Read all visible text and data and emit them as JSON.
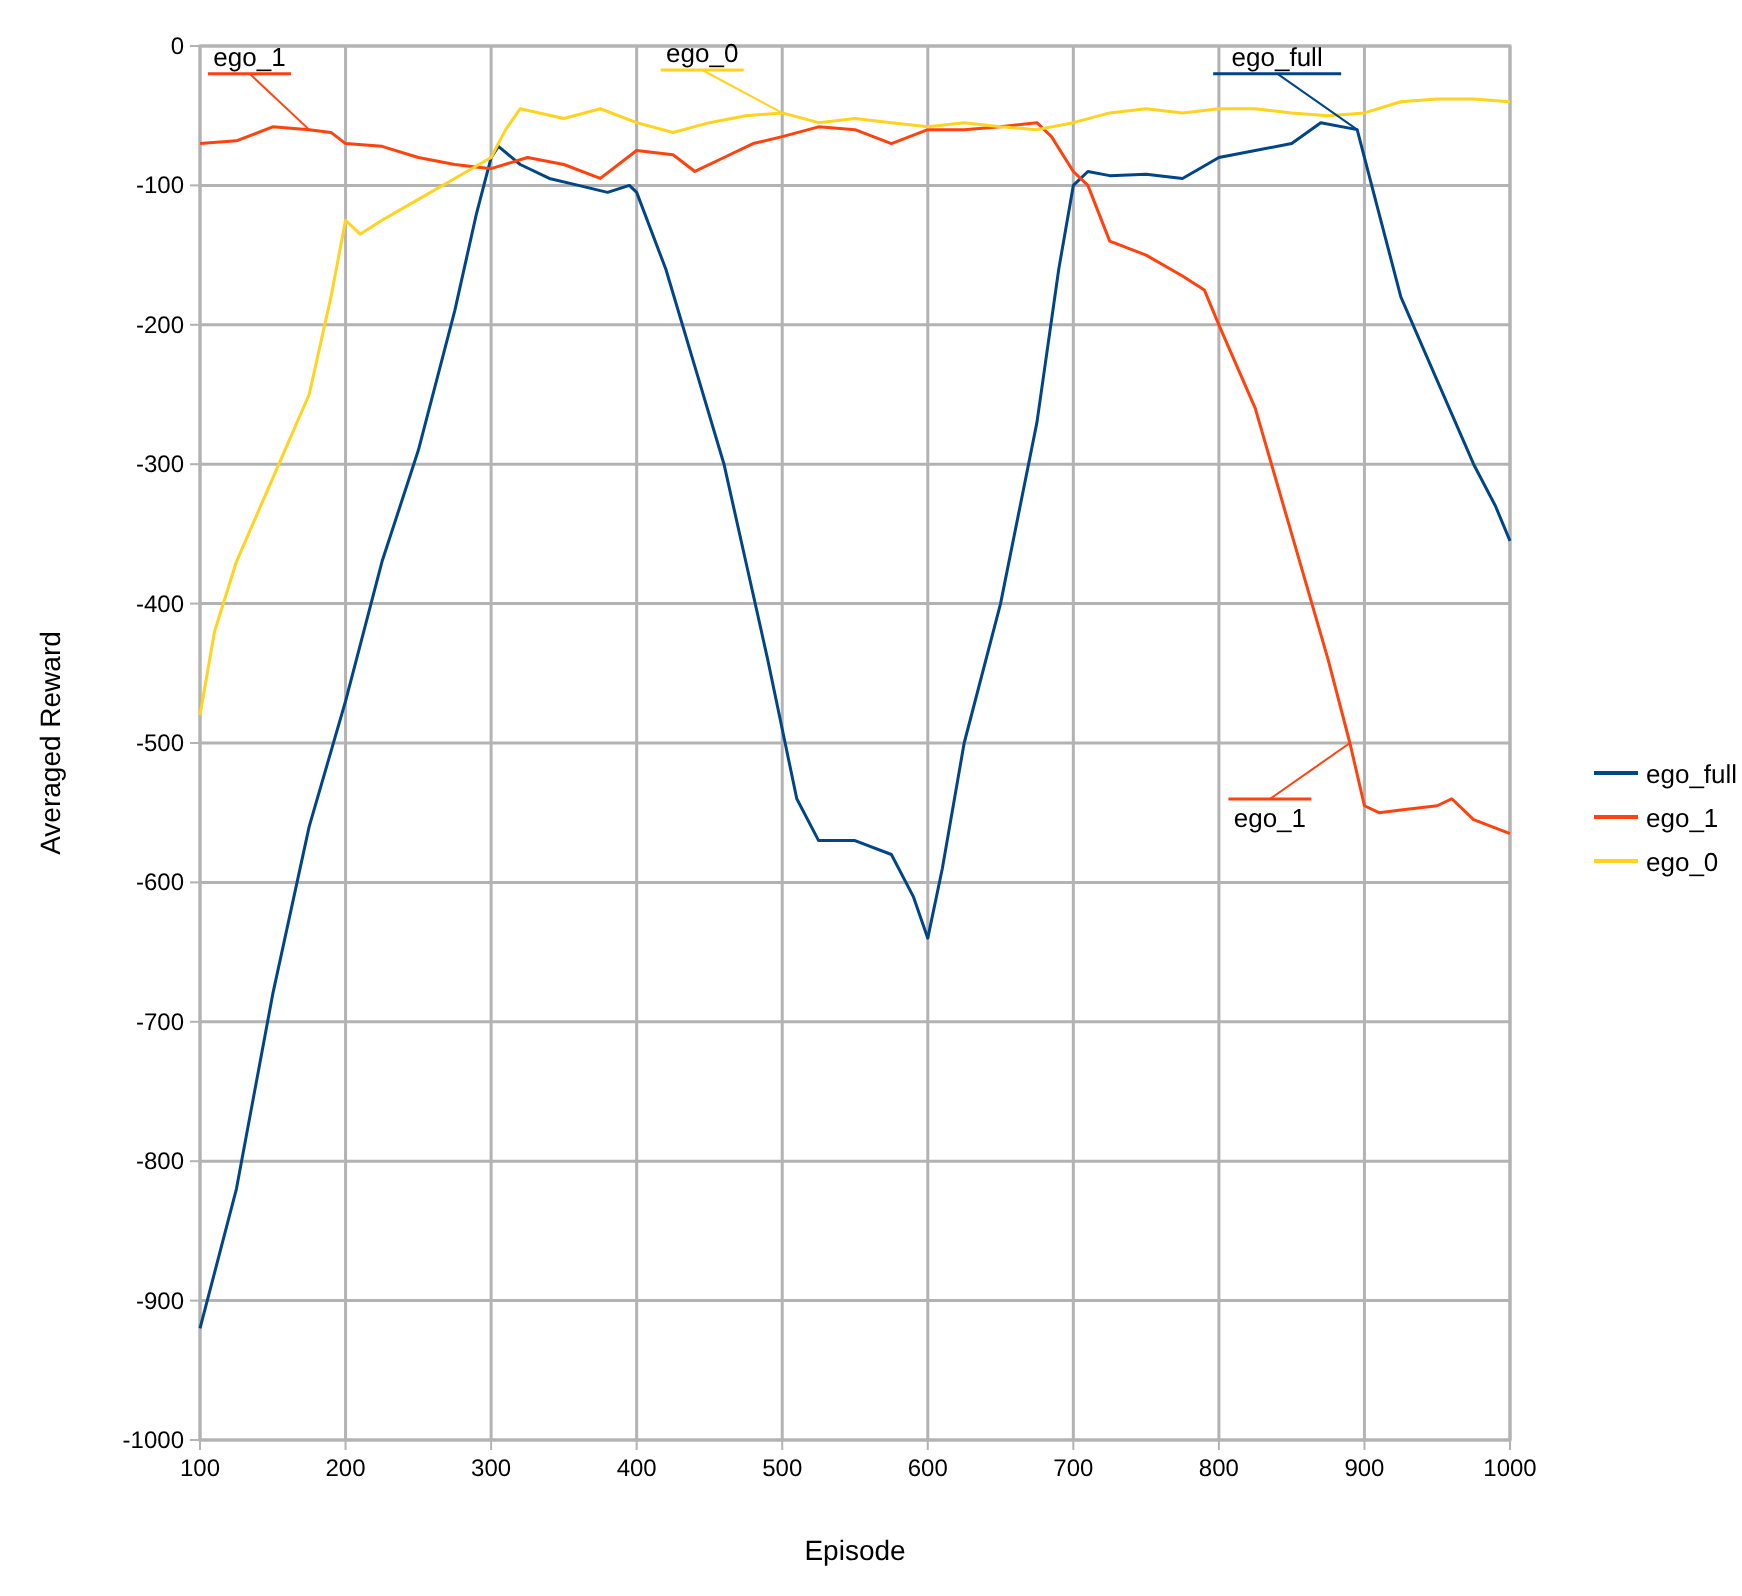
{
  "chart_data": {
    "type": "line",
    "xlabel": "Episode",
    "ylabel": "Averaged Reward",
    "xlim": [
      100,
      1000
    ],
    "xticks": [
      100,
      200,
      300,
      400,
      500,
      600,
      700,
      800,
      900,
      1000
    ],
    "ylim": [
      -1000,
      0
    ],
    "yticks": [
      -1000,
      -900,
      -800,
      -700,
      -600,
      -500,
      -400,
      -300,
      -200,
      -100,
      0
    ],
    "grid": true,
    "legend": "right",
    "line_style": "solid",
    "marker": "none",
    "series": [
      {
        "name": "ego_full",
        "color": "#004586",
        "x": [
          100,
          125,
          150,
          175,
          200,
          225,
          250,
          275,
          290,
          300,
          305,
          320,
          340,
          360,
          380,
          395,
          400,
          420,
          440,
          460,
          475,
          490,
          500,
          510,
          525,
          550,
          575,
          590,
          600,
          610,
          625,
          650,
          675,
          690,
          700,
          710,
          725,
          750,
          775,
          800,
          825,
          850,
          870,
          895,
          910,
          925,
          950,
          975,
          990,
          1000
        ],
        "values": [
          -920,
          -820,
          -680,
          -560,
          -470,
          -370,
          -290,
          -190,
          -120,
          -80,
          -72,
          -85,
          -95,
          -100,
          -105,
          -100,
          -105,
          -160,
          -230,
          -300,
          -370,
          -440,
          -490,
          -540,
          -570,
          -570,
          -580,
          -610,
          -640,
          -590,
          -500,
          -400,
          -270,
          -160,
          -100,
          -90,
          -93,
          -92,
          -95,
          -80,
          -75,
          -70,
          -55,
          -60,
          -120,
          -180,
          -240,
          -300,
          -330,
          -355
        ]
      },
      {
        "name": "ego_1",
        "color": "#ff420e",
        "x": [
          100,
          125,
          150,
          175,
          190,
          200,
          225,
          250,
          275,
          300,
          325,
          350,
          375,
          400,
          425,
          440,
          460,
          480,
          500,
          525,
          550,
          575,
          600,
          625,
          650,
          675,
          685,
          700,
          710,
          725,
          750,
          775,
          790,
          800,
          825,
          850,
          875,
          890,
          900,
          910,
          925,
          950,
          960,
          975,
          1000
        ],
        "values": [
          -70,
          -68,
          -58,
          -60,
          -62,
          -70,
          -72,
          -80,
          -85,
          -88,
          -80,
          -85,
          -95,
          -75,
          -78,
          -90,
          -80,
          -70,
          -65,
          -58,
          -60,
          -70,
          -60,
          -60,
          -58,
          -55,
          -65,
          -90,
          -100,
          -140,
          -150,
          -165,
          -175,
          -200,
          -260,
          -350,
          -440,
          -500,
          -545,
          -550,
          -548,
          -545,
          -540,
          -555,
          -565
        ]
      },
      {
        "name": "ego_0",
        "color": "#ffd320",
        "x": [
          100,
          110,
          125,
          150,
          175,
          190,
          200,
          210,
          225,
          250,
          275,
          300,
          310,
          320,
          350,
          375,
          400,
          425,
          450,
          475,
          500,
          525,
          550,
          575,
          600,
          625,
          650,
          675,
          700,
          725,
          750,
          775,
          800,
          825,
          850,
          875,
          900,
          925,
          950,
          975,
          1000
        ],
        "values": [
          -480,
          -420,
          -370,
          -310,
          -250,
          -180,
          -125,
          -135,
          -125,
          -110,
          -95,
          -80,
          -60,
          -45,
          -52,
          -45,
          -55,
          -62,
          -55,
          -50,
          -48,
          -55,
          -52,
          -55,
          -58,
          -55,
          -58,
          -60,
          -55,
          -48,
          -45,
          -48,
          -45,
          -45,
          -48,
          -50,
          -48,
          -40,
          -38,
          -38,
          -40
        ]
      }
    ],
    "annotations": [
      {
        "text": "ego_1",
        "x": 175,
        "y": -60
      },
      {
        "text": "ego_0",
        "x": 500,
        "y": -48
      },
      {
        "text": "ego_full",
        "x": 895,
        "y": -60
      },
      {
        "text": "ego_1",
        "x": 890,
        "y": -500
      }
    ]
  }
}
